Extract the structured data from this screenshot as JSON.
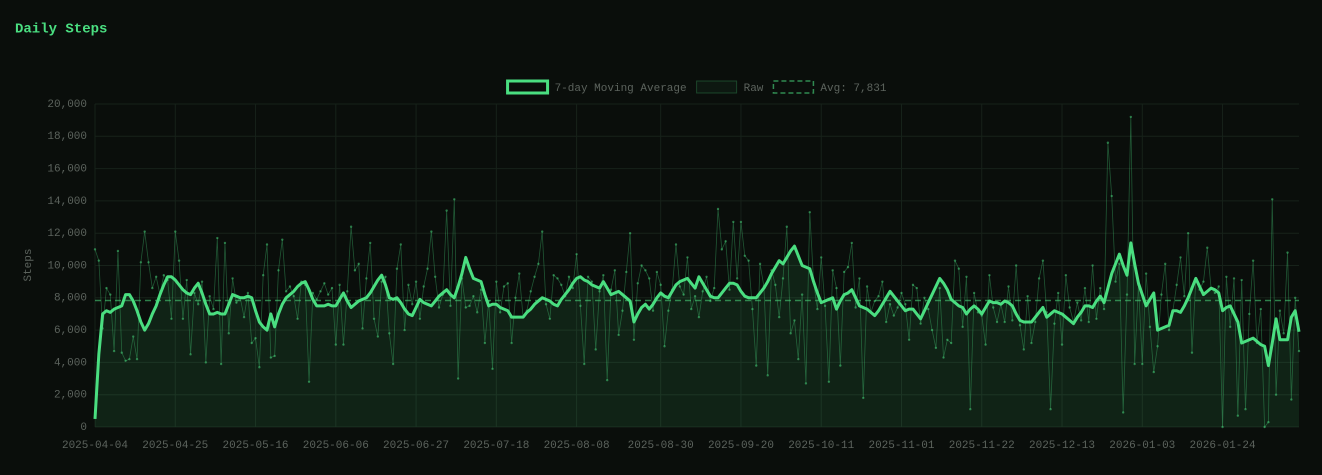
{
  "chart_data": {
    "type": "line",
    "title": "Daily Steps",
    "y_label": "Steps",
    "x": [
      "2025-04-04",
      null,
      null,
      null,
      null,
      null,
      null,
      null,
      null,
      null,
      null,
      null,
      null,
      null,
      null,
      null,
      null,
      null,
      null,
      null,
      null,
      "2025-04-25",
      null,
      null,
      null,
      null,
      null,
      null,
      null,
      null,
      null,
      null,
      null,
      null,
      null,
      null,
      null,
      null,
      null,
      null,
      null,
      null,
      "2025-05-16",
      null,
      null,
      null,
      null,
      null,
      null,
      null,
      null,
      null,
      null,
      null,
      null,
      null,
      null,
      null,
      null,
      null,
      null,
      null,
      null,
      "2025-06-06",
      null,
      null,
      null,
      null,
      null,
      null,
      null,
      null,
      null,
      null,
      null,
      null,
      null,
      null,
      null,
      null,
      null,
      null,
      null,
      null,
      "2025-06-27",
      null,
      null,
      null,
      null,
      null,
      null,
      null,
      null,
      null,
      null,
      null,
      null,
      null,
      null,
      null,
      null,
      null,
      null,
      null,
      null,
      "2025-07-18",
      null,
      null,
      null,
      null,
      null,
      null,
      null,
      null,
      null,
      null,
      null,
      null,
      null,
      null,
      null,
      null,
      null,
      null,
      null,
      null,
      "2025-08-08",
      null,
      null,
      null,
      null,
      null,
      null,
      null,
      null,
      null,
      null,
      null,
      null,
      null,
      null,
      null,
      null,
      null,
      null,
      null,
      null,
      null,
      "2025-08-30",
      null,
      null,
      null,
      null,
      null,
      null,
      null,
      null,
      null,
      null,
      null,
      null,
      null,
      null,
      null,
      null,
      null,
      null,
      null,
      null,
      "2025-09-20",
      null,
      null,
      null,
      null,
      null,
      null,
      null,
      null,
      null,
      null,
      null,
      null,
      null,
      null,
      null,
      null,
      null,
      null,
      null,
      null,
      "2025-10-11",
      null,
      null,
      null,
      null,
      null,
      null,
      null,
      null,
      null,
      null,
      null,
      null,
      null,
      null,
      null,
      null,
      null,
      null,
      null,
      null,
      "2025-11-01",
      null,
      null,
      null,
      null,
      null,
      null,
      null,
      null,
      null,
      null,
      null,
      null,
      null,
      null,
      null,
      null,
      null,
      null,
      null,
      null,
      "2025-11-22",
      null,
      null,
      null,
      null,
      null,
      null,
      null,
      null,
      null,
      null,
      null,
      null,
      null,
      null,
      null,
      null,
      null,
      null,
      null,
      null,
      "2025-12-13",
      null,
      null,
      null,
      null,
      null,
      null,
      null,
      null,
      null,
      null,
      null,
      null,
      null,
      null,
      null,
      null,
      null,
      null,
      null,
      null,
      "2026-01-03",
      null,
      null,
      null,
      null,
      null,
      null,
      null,
      null,
      null,
      null,
      null,
      null,
      null,
      null,
      null,
      null,
      null,
      null,
      null,
      null,
      "2026-01-24",
      null,
      null,
      null,
      null,
      null,
      null,
      null,
      null,
      null,
      null,
      null,
      null,
      null,
      null,
      null,
      null,
      null,
      null,
      null,
      null
    ],
    "series": [
      {
        "name": "7-day Moving Average",
        "color": "#4ade80",
        "values": [
          500,
          4500,
          7000,
          7200,
          7100,
          7300,
          7400,
          7500,
          8200,
          8200,
          7800,
          7200,
          6500,
          6000,
          6400,
          7000,
          7500,
          8200,
          8800,
          9300,
          9300,
          9100,
          8800,
          8500,
          8300,
          8200,
          8600,
          8900,
          8300,
          7600,
          7000,
          7000,
          7100,
          7000,
          7000,
          7600,
          8200,
          8100,
          8000,
          8000,
          8100,
          8000,
          7200,
          6500,
          6200,
          6000,
          7000,
          6200,
          7000,
          7600,
          8000,
          8200,
          8400,
          8700,
          8900,
          9000,
          8500,
          7900,
          7500,
          7500,
          7500,
          7600,
          7500,
          7500,
          7900,
          8300,
          7800,
          7400,
          7600,
          7800,
          7900,
          8000,
          8300,
          8700,
          9100,
          9400,
          8800,
          8000,
          7900,
          8000,
          7700,
          7300,
          7000,
          6900,
          7400,
          7900,
          7700,
          7600,
          7500,
          7800,
          8100,
          8300,
          8500,
          8200,
          8000,
          8700,
          9500,
          10500,
          9800,
          9200,
          9100,
          9000,
          8200,
          7500,
          7600,
          7600,
          7400,
          7300,
          7200,
          6800,
          6800,
          6800,
          6800,
          7100,
          7300,
          7600,
          7800,
          8000,
          7900,
          7800,
          7600,
          7500,
          7900,
          8200,
          8500,
          8900,
          9200,
          9300,
          9100,
          9000,
          8800,
          8700,
          8600,
          9000,
          8600,
          8200,
          8300,
          8400,
          8200,
          8000,
          7800,
          6500,
          7000,
          7400,
          7600,
          7300,
          7600,
          8000,
          8300,
          8100,
          8000,
          8400,
          8800,
          9000,
          9100,
          9200,
          8900,
          8600,
          9300,
          8900,
          8500,
          8100,
          8000,
          8000,
          8300,
          8600,
          8900,
          8900,
          8800,
          8400,
          8100,
          8000,
          8000,
          8000,
          8300,
          8600,
          9000,
          9500,
          9900,
          10300,
          10100,
          10500,
          10900,
          11200,
          10600,
          10000,
          9900,
          9800,
          9000,
          8300,
          7700,
          7800,
          7900,
          8000,
          7300,
          7800,
          8200,
          8300,
          8500,
          8000,
          7500,
          7400,
          7300,
          7100,
          6900,
          7200,
          7600,
          8000,
          8400,
          8100,
          7800,
          7500,
          7200,
          7300,
          7300,
          7000,
          6700,
          7200,
          7700,
          8200,
          8700,
          9200,
          8900,
          8500,
          7900,
          7700,
          7500,
          7400,
          7000,
          7300,
          7500,
          7300,
          7000,
          7400,
          7800,
          7700,
          7700,
          7600,
          7800,
          7700,
          7500,
          7000,
          6600,
          6500,
          6500,
          6500,
          6800,
          7100,
          7400,
          6800,
          7000,
          7200,
          7100,
          7000,
          6800,
          6600,
          6400,
          6800,
          7100,
          7500,
          7500,
          7400,
          7800,
          8100,
          7700,
          8600,
          9500,
          10100,
          10700,
          10000,
          9400,
          11400,
          10100,
          8900,
          8200,
          7500,
          7900,
          8300,
          6000,
          6100,
          6200,
          6300,
          7200,
          7200,
          7100,
          7500,
          8000,
          8600,
          9200,
          8700,
          8200,
          8400,
          8600,
          8500,
          8300,
          7200,
          7400,
          7500,
          7000,
          6500,
          5200,
          5300,
          5400,
          5500,
          5300,
          5100,
          5000,
          3800,
          5200,
          6700,
          5400,
          5400,
          5400,
          6800,
          7200,
          5900
        ]
      },
      {
        "name": "Raw",
        "color": "#4ade80",
        "values": [
          11000,
          10300,
          6100,
          8600,
          8200,
          4700,
          10900,
          4600,
          4100,
          4200,
          5600,
          4200,
          10200,
          12100,
          10200,
          8600,
          9300,
          8200,
          9400,
          9100,
          6700,
          12100,
          10300,
          6700,
          9100,
          4500,
          8300,
          7600,
          9000,
          4000,
          8100,
          7300,
          11700,
          3900,
          11400,
          5800,
          9200,
          7700,
          8000,
          6800,
          8300,
          5200,
          5500,
          3700,
          9400,
          11300,
          4300,
          4400,
          9700,
          11600,
          8400,
          8700,
          8100,
          6700,
          9000,
          8800,
          2800,
          8300,
          7900,
          8400,
          8900,
          8200,
          8600,
          5100,
          8800,
          5100,
          8400,
          12400,
          9700,
          10100,
          6100,
          9200,
          11400,
          6700,
          5600,
          9000,
          9300,
          5800,
          3900,
          9800,
          11300,
          6000,
          8800,
          7600,
          9000,
          6700,
          8700,
          9800,
          12100,
          9300,
          7400,
          8200,
          13400,
          7500,
          14100,
          3000,
          9200,
          7400,
          7500,
          8100,
          7100,
          8500,
          5200,
          7800,
          3600,
          9000,
          7100,
          8700,
          8900,
          5200,
          8000,
          9500,
          6800,
          7200,
          8400,
          9300,
          10100,
          12100,
          7600,
          6700,
          9400,
          9200,
          8800,
          8100,
          9300,
          8600,
          10700,
          7500,
          3900,
          9300,
          9000,
          4800,
          8400,
          9400,
          2900,
          8500,
          9700,
          5700,
          7200,
          9600,
          12000,
          5400,
          8900,
          10000,
          9700,
          9200,
          7200,
          9600,
          8800,
          5000,
          7200,
          8500,
          11300,
          8700,
          8200,
          10500,
          7300,
          8100,
          6800,
          8400,
          9300,
          7800,
          8600,
          13500,
          11000,
          11500,
          8500,
          12700,
          9200,
          12700,
          10600,
          10300,
          7300,
          3800,
          10100,
          8700,
          3200,
          9700,
          8800,
          6800,
          9200,
          12400,
          5800,
          6600,
          4200,
          8200,
          2700,
          13300,
          9000,
          7300,
          10500,
          7500,
          2800,
          9700,
          8600,
          3800,
          9600,
          9900,
          11400,
          7400,
          9200,
          1800,
          8700,
          7100,
          7800,
          8100,
          9000,
          6500,
          7600,
          6900,
          7400,
          8300,
          7600,
          5400,
          8800,
          8600,
          6400,
          8000,
          7300,
          6000,
          4900,
          8600,
          4300,
          5400,
          5200,
          10300,
          9800,
          6200,
          9300,
          1100,
          8300,
          7100,
          6900,
          5100,
          9400,
          7400,
          6500,
          7600,
          6500,
          8700,
          6600,
          10000,
          6300,
          4800,
          8100,
          5200,
          6500,
          9200,
          10300,
          7100,
          1100,
          6400,
          8300,
          5100,
          9400,
          7400,
          6500,
          7700,
          6600,
          8600,
          6500,
          10000,
          6700,
          8600,
          7300,
          17600,
          14300,
          9000,
          10100,
          900,
          8200,
          19200,
          3900,
          8800,
          3900,
          9500,
          6200,
          3400,
          5000,
          8200,
          10100,
          6000,
          7200,
          8800,
          10500,
          8100,
          12000,
          4600,
          9100,
          8500,
          9000,
          11100,
          8600,
          8300,
          8700,
          0,
          9300,
          6200,
          9200,
          700,
          9100,
          1100,
          7000,
          10300,
          5200,
          7300,
          0,
          300,
          14100,
          2000,
          7200,
          5800,
          10800,
          1700,
          8000,
          4700
        ]
      }
    ],
    "average": {
      "label": "Avg: 7,831",
      "value": 7831,
      "color": "#4ade80"
    },
    "ylim": [
      0,
      20000
    ],
    "yticks": [
      0,
      {
        "value": 2000,
        "label": "2,000"
      },
      {
        "value": 4000,
        "label": "4,000"
      },
      {
        "value": 6000,
        "label": "6,000"
      },
      {
        "value": 8000,
        "label": "8,000"
      },
      {
        "value": 10000,
        "label": "10,000"
      },
      {
        "value": 12000,
        "label": "12,000"
      },
      {
        "value": 14000,
        "label": "14,000"
      },
      {
        "value": 16000,
        "label": "16,000"
      },
      {
        "value": 18000,
        "label": "18,000"
      },
      {
        "value": 20000,
        "label": "20,000"
      }
    ],
    "grid": true
  }
}
